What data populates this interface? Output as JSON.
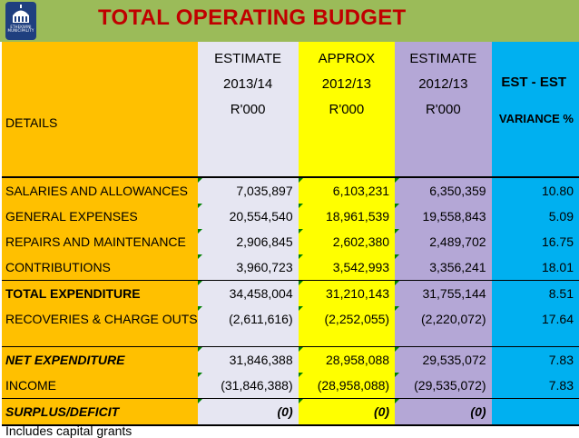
{
  "header": {
    "title": "TOTAL OPERATING BUDGET",
    "logo_text": "ETHEKWINI MUNICIPALITY",
    "bar_color": "#9bbb59",
    "title_color": "#c00000"
  },
  "columns": {
    "details": "DETAILS",
    "est_2013_14": {
      "line1": "ESTIMATE",
      "line2": "2013/14",
      "line3": "R'000"
    },
    "approx_2012_13": {
      "line1": "APPROX",
      "line2": "2012/13",
      "line3": "R'000"
    },
    "est_2012_13": {
      "line1": "ESTIMATE",
      "line2": "2012/13",
      "line3": "R'000"
    },
    "variance": {
      "line1": "EST - EST",
      "line2": "VARIANCE %"
    }
  },
  "rows": [
    {
      "label": "SALARIES AND ALLOWANCES",
      "est_2013_14": "7,035,897",
      "approx_2012_13": "6,103,231",
      "est_2012_13": "6,350,359",
      "variance": "10.80"
    },
    {
      "label": "GENERAL EXPENSES",
      "est_2013_14": "20,554,540",
      "approx_2012_13": "18,961,539",
      "est_2012_13": "19,558,843",
      "variance": "5.09"
    },
    {
      "label": "REPAIRS AND MAINTENANCE",
      "est_2013_14": "2,906,845",
      "approx_2012_13": "2,602,380",
      "est_2012_13": "2,489,702",
      "variance": "16.75"
    },
    {
      "label": "CONTRIBUTIONS",
      "est_2013_14": "3,960,723",
      "approx_2012_13": "3,542,993",
      "est_2012_13": "3,356,241",
      "variance": "18.01"
    },
    {
      "label": "TOTAL EXPENDITURE",
      "est_2013_14": "34,458,004",
      "approx_2012_13": "31,210,143",
      "est_2012_13": "31,755,144",
      "variance": "8.51"
    },
    {
      "label": "RECOVERIES & CHARGE OUTS",
      "est_2013_14": "(2,611,616)",
      "approx_2012_13": "(2,252,055)",
      "est_2012_13": "(2,220,072)",
      "variance": "17.64"
    },
    {
      "label": "NET EXPENDITURE",
      "est_2013_14": "31,846,388",
      "approx_2012_13": "28,958,088",
      "est_2012_13": "29,535,072",
      "variance": "7.83"
    },
    {
      "label": "INCOME",
      "est_2013_14": "(31,846,388)",
      "approx_2012_13": "(28,958,088)",
      "est_2012_13": "(29,535,072)",
      "variance": "7.83"
    },
    {
      "label": "SURPLUS/DEFICIT",
      "est_2013_14": "(0)",
      "approx_2012_13": "(0)",
      "est_2012_13": "(0)",
      "variance": ""
    }
  ],
  "footnote": "Includes capital grants",
  "colors": {
    "details": "#ffc000",
    "est_2013_14": "#e6e6f2",
    "approx_2012_13": "#ffff00",
    "est_2012_13": "#b4a7d6",
    "variance": "#00b0f0"
  }
}
